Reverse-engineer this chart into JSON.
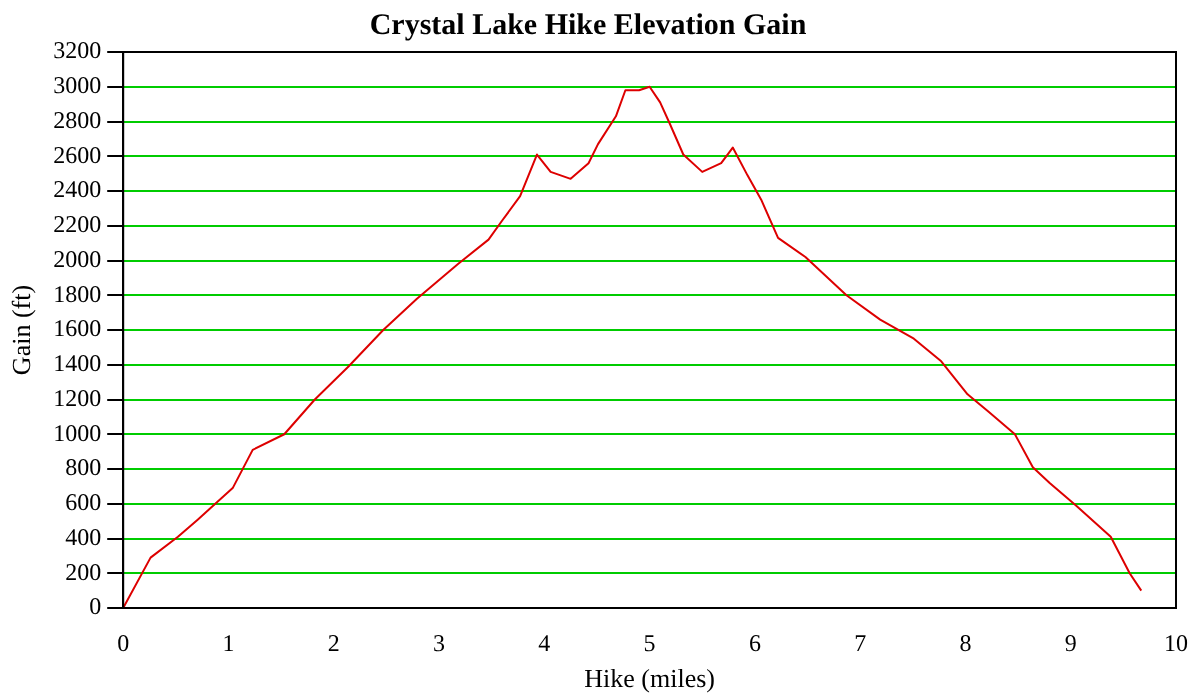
{
  "chart_data": {
    "type": "line",
    "title": "Crystal Lake Hike Elevation Gain",
    "xlabel": "Hike (miles)",
    "ylabel": "Gain (ft)",
    "series": [
      {
        "color": "#dd0000",
        "x": [
          0,
          0.26,
          0.52,
          0.71,
          1.04,
          1.23,
          1.53,
          1.82,
          2.14,
          2.47,
          2.79,
          3.18,
          3.47,
          3.6,
          3.77,
          3.93,
          4.06,
          4.25,
          4.42,
          4.51,
          4.68,
          4.77,
          4.9,
          5.0,
          5.1,
          5.19,
          5.32,
          5.5,
          5.68,
          5.79,
          5.93,
          6.06,
          6.22,
          6.48,
          6.87,
          7.19,
          7.51,
          7.77,
          8.02,
          8.22,
          8.47,
          8.64,
          8.8,
          9.05,
          9.38,
          9.56,
          9.67
        ],
        "values": [
          0,
          290,
          410,
          510,
          690,
          910,
          1000,
          1200,
          1390,
          1600,
          1780,
          1980,
          2120,
          2230,
          2370,
          2610,
          2510,
          2470,
          2560,
          2670,
          2830,
          2980,
          2980,
          3000,
          2910,
          2790,
          2610,
          2510,
          2560,
          2650,
          2490,
          2350,
          2130,
          2020,
          1800,
          1660,
          1550,
          1420,
          1230,
          1130,
          1000,
          810,
          720,
          590,
          410,
          200,
          100
        ]
      }
    ],
    "xlim": [
      0,
      10
    ],
    "xticks": [
      0,
      1,
      2,
      3,
      4,
      5,
      6,
      7,
      8,
      9,
      10
    ],
    "ylim": [
      0,
      3200
    ],
    "yticks": [
      0,
      200,
      400,
      600,
      800,
      1000,
      1200,
      1400,
      1600,
      1800,
      2000,
      2200,
      2400,
      2600,
      2800,
      3000,
      3200
    ],
    "grid": "y",
    "marker": "none",
    "line_style": "solid",
    "legend": false
  }
}
